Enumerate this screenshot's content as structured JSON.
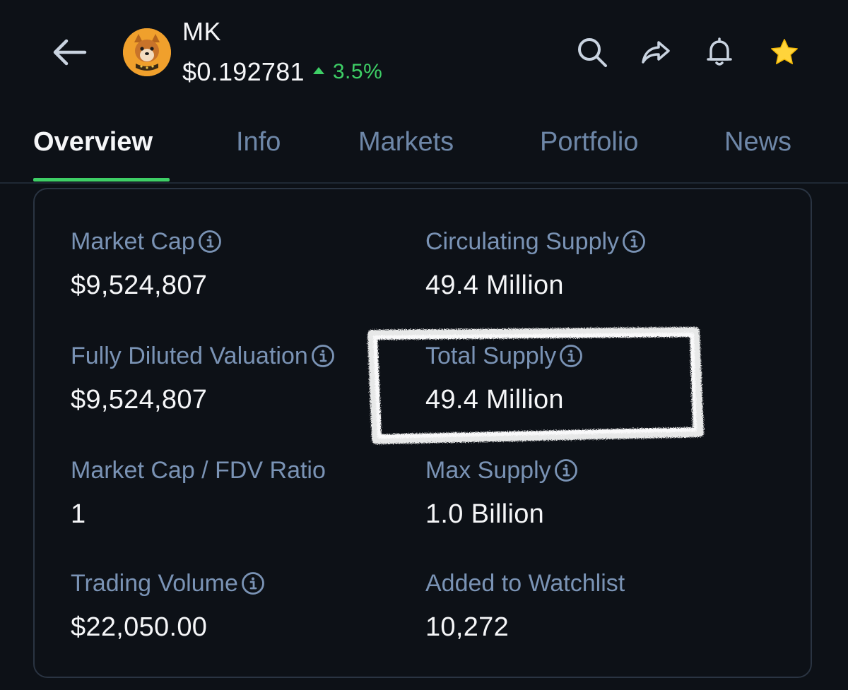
{
  "header": {
    "coin_name": "MK",
    "price": "$0.192781",
    "change": "3.5%",
    "change_direction": "up",
    "change_color": "#3ecf66",
    "icons": [
      "back-arrow-icon",
      "coin-avatar",
      "search-icon",
      "share-icon",
      "bell-icon",
      "star-icon"
    ],
    "star_color": "#ffd43b"
  },
  "tabs": [
    {
      "label": "Overview",
      "active": true
    },
    {
      "label": "Info",
      "active": false
    },
    {
      "label": "Markets",
      "active": false
    },
    {
      "label": "Portfolio",
      "active": false
    },
    {
      "label": "News",
      "active": false
    }
  ],
  "accent_color": "#3ecf66",
  "stats": [
    {
      "label": "Market Cap",
      "value": "$9,524,807",
      "info": true
    },
    {
      "label": "Circulating Supply",
      "value": "49.4 Million",
      "info": true
    },
    {
      "label": "Fully Diluted Valuation",
      "value": "$9,524,807",
      "info": true
    },
    {
      "label": "Total Supply",
      "value": "49.4 Million",
      "info": true,
      "highlighted": true
    },
    {
      "label": "Market Cap / FDV Ratio",
      "value": "1",
      "info": false
    },
    {
      "label": "Max Supply",
      "value": "1.0 Billion",
      "info": true
    },
    {
      "label": "Trading Volume",
      "value": "$22,050.00",
      "info": true
    },
    {
      "label": "Added to Watchlist",
      "value": "10,272",
      "info": false
    }
  ]
}
